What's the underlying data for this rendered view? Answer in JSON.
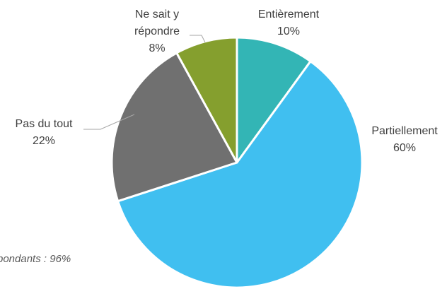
{
  "chart_data": {
    "type": "pie",
    "slices": [
      {
        "label_lines": [
          "Entièrement"
        ],
        "value": 10,
        "value_label": "10%",
        "color": "#33b5b5"
      },
      {
        "label_lines": [
          "Partiellement"
        ],
        "value": 60,
        "value_label": "60%",
        "color": "#40bff0"
      },
      {
        "label_lines": [
          "Pas du tout"
        ],
        "value": 22,
        "value_label": "22%",
        "color": "#707070"
      },
      {
        "label_lines": [
          "Ne sait y",
          "répondre"
        ],
        "value": 8,
        "value_label": "8%",
        "color": "#859f2e"
      }
    ],
    "footnote": "pondants : 96%"
  }
}
